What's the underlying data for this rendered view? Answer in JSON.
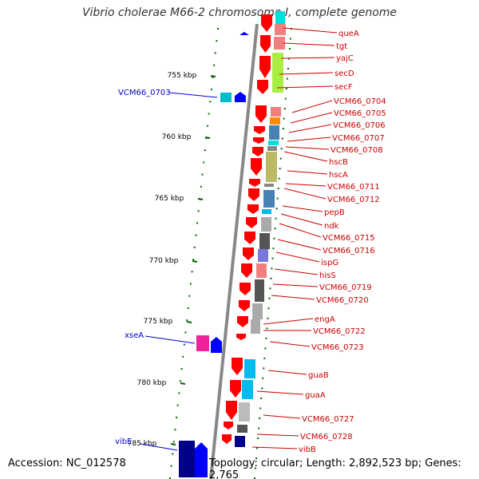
{
  "title": "Vibrio cholerae M66-2 chromosome I, complete genome",
  "accession": "Accession: NC_012578",
  "topology": "Topology: circular; Length: 2,892,523 bp; Genes: 2,765",
  "colors": {
    "forward_gene": "#ff0000",
    "reverse_gene": "#0000ff",
    "right_label": "#cc0000",
    "left_label": "#0000cc",
    "tick": "#006400",
    "backbone": "#888888"
  },
  "ruler": [
    {
      "label": "755 kbp"
    },
    {
      "label": "760 kbp"
    },
    {
      "label": "765 kbp"
    },
    {
      "label": "770 kbp"
    },
    {
      "label": "775 kbp"
    },
    {
      "label": "780 kbp"
    },
    {
      "label": "785 kbp"
    }
  ],
  "right_genes": [
    "queA",
    "tgt",
    "yajC",
    "secD",
    "secF",
    "VCM66_0704",
    "VCM66_0705",
    "VCM66_0706",
    "VCM66_0707",
    "VCM66_0708",
    "hscB",
    "hscA",
    "VCM66_0711",
    "VCM66_0712",
    "pepB",
    "ndk",
    "VCM66_0715",
    "VCM66_0716",
    "ispG",
    "hisS",
    "VCM66_0719",
    "VCM66_0720",
    "engA",
    "VCM66_0722",
    "VCM66_0723",
    "guaB",
    "guaA",
    "VCM66_0727",
    "VCM66_0728",
    "vibB"
  ],
  "left_genes": [
    "VCM66_0703",
    "xseA",
    "vibE"
  ]
}
